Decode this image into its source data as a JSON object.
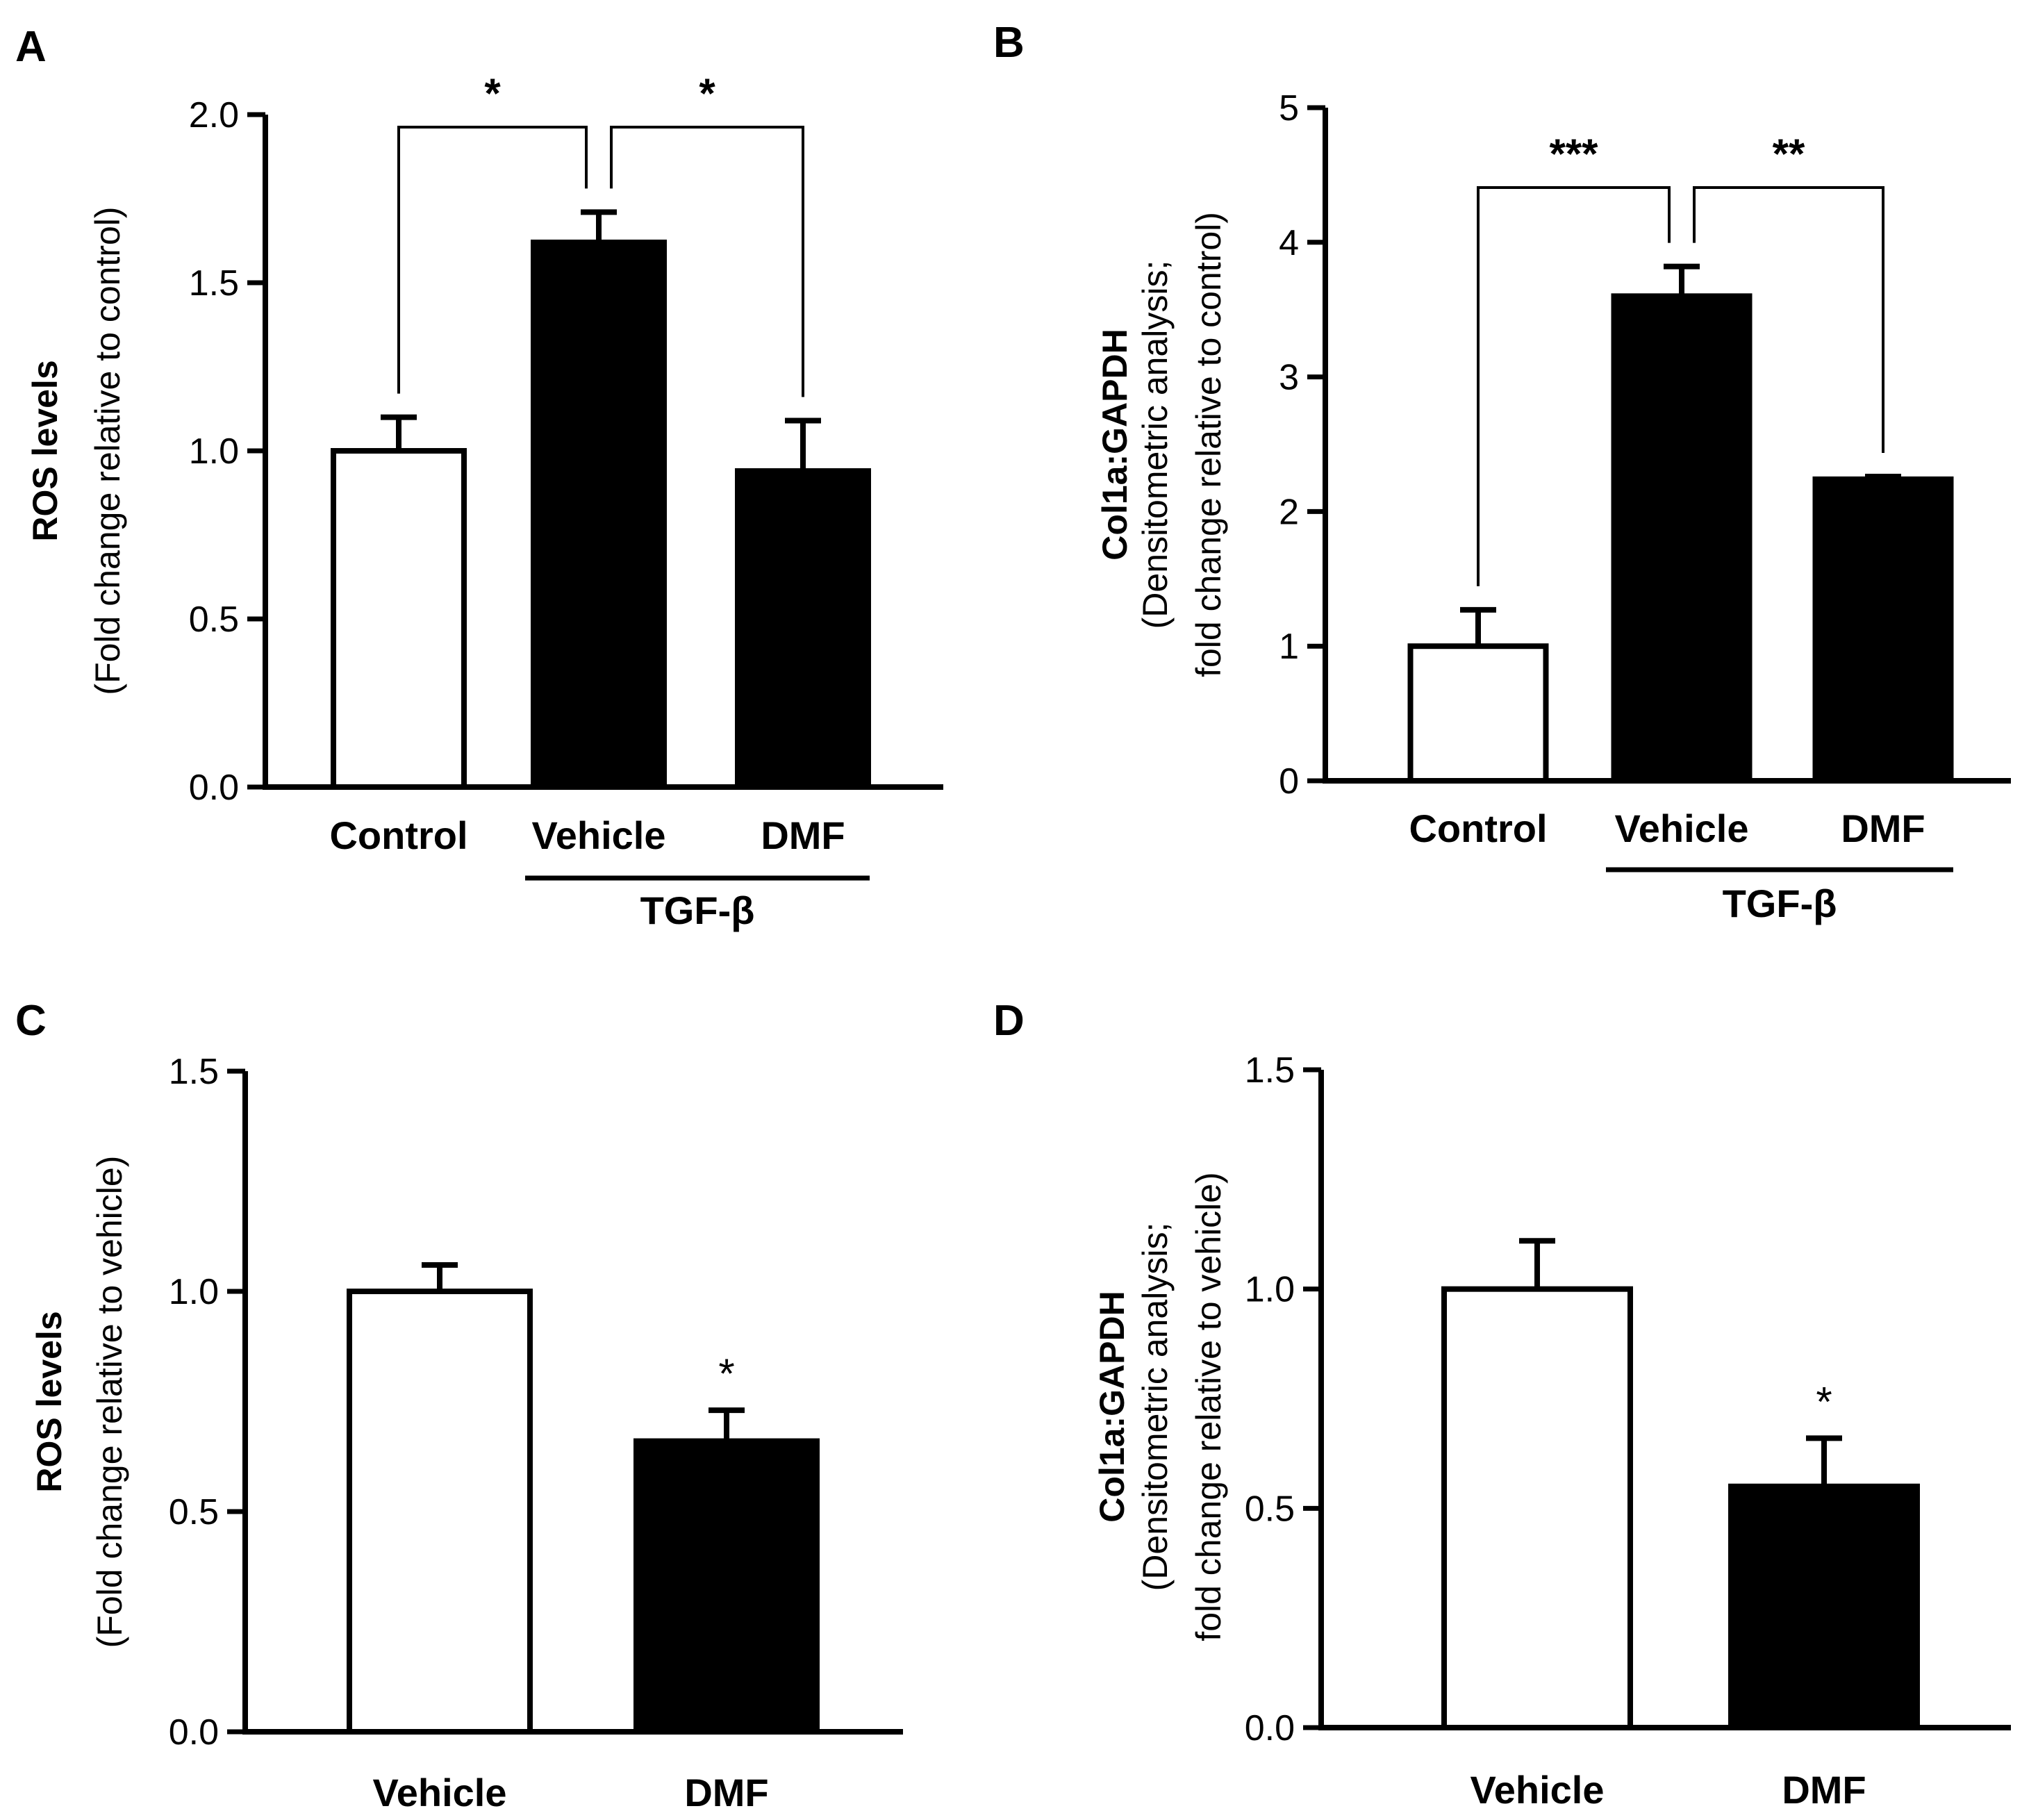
{
  "chart_data": [
    {
      "panel": "A",
      "type": "bar",
      "categories": [
        "Control",
        "Vehicle",
        "DMF"
      ],
      "values": [
        1.0,
        1.62,
        0.94
      ],
      "errors": [
        0.1,
        0.09,
        0.15
      ],
      "fills": [
        "#ffffff",
        "#000000",
        "#000000"
      ],
      "ylabel_main": "ROS levels",
      "ylabel_sub": [
        "(Fold change relative to control)"
      ],
      "ylim": [
        0,
        2.0
      ],
      "yticks": [
        "0.0",
        "0.5",
        "1.0",
        "1.5",
        "2.0"
      ],
      "ytick_values": [
        0,
        0.5,
        1.0,
        1.5,
        2.0
      ],
      "group_label": "TGF-β",
      "significance": [
        {
          "from": 0,
          "to": 1,
          "label": "*"
        },
        {
          "from": 2,
          "to": 1,
          "label": "*"
        }
      ]
    },
    {
      "panel": "B",
      "type": "bar",
      "categories": [
        "Control",
        "Vehicle",
        "DMF"
      ],
      "values": [
        1.0,
        3.6,
        2.24
      ],
      "errors": [
        0.27,
        0.22,
        0.02
      ],
      "fills": [
        "#ffffff",
        "#000000",
        "#000000"
      ],
      "ylabel_main": "Col1a:GAPDH",
      "ylabel_sub": [
        "(Densitometric analysis;",
        "fold change relative to control)"
      ],
      "ylim": [
        0,
        5
      ],
      "yticks": [
        "0",
        "1",
        "2",
        "3",
        "4",
        "5"
      ],
      "ytick_values": [
        0,
        1,
        2,
        3,
        4,
        5
      ],
      "group_label": "TGF-β",
      "significance": [
        {
          "from": 0,
          "to": 1,
          "label": "***"
        },
        {
          "from": 2,
          "to": 1,
          "label": "**"
        }
      ]
    },
    {
      "panel": "C",
      "type": "bar",
      "categories": [
        "Vehicle",
        "DMF"
      ],
      "values": [
        1.0,
        0.66
      ],
      "errors": [
        0.06,
        0.07
      ],
      "fills": [
        "#ffffff",
        "#000000"
      ],
      "ylabel_main": "ROS levels",
      "ylabel_sub": [
        "(Fold change relative to vehicle)"
      ],
      "ylim": [
        0,
        1.5
      ],
      "yticks": [
        "0.0",
        "0.5",
        "1.0",
        "1.5"
      ],
      "ytick_values": [
        0,
        0.5,
        1.0,
        1.5
      ],
      "group_label": "",
      "stars": [
        "",
        "*"
      ]
    },
    {
      "panel": "D",
      "type": "bar",
      "categories": [
        "Vehicle",
        "DMF"
      ],
      "values": [
        1.0,
        0.55
      ],
      "errors": [
        0.11,
        0.11
      ],
      "fills": [
        "#ffffff",
        "#000000"
      ],
      "ylabel_main": "Col1a:GAPDH",
      "ylabel_sub": [
        "(Densitometric analysis;",
        "fold change relative to vehicle)"
      ],
      "ylim": [
        0,
        1.5
      ],
      "yticks": [
        "0.0",
        "0.5",
        "1.0",
        "1.5"
      ],
      "ytick_values": [
        0,
        0.5,
        1.0,
        1.5
      ],
      "group_label": "",
      "stars": [
        "",
        "*"
      ]
    }
  ]
}
